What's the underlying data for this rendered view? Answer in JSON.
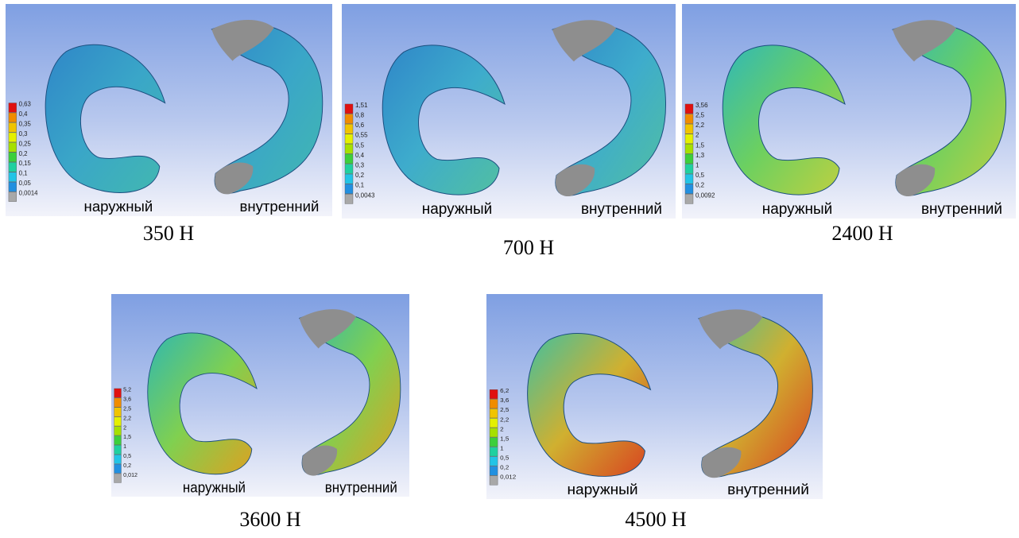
{
  "panels": [
    {
      "legend": [
        "0,63",
        "0,4",
        "0,35",
        "0,3",
        "0,25",
        "0,2",
        "0,15",
        "0,1",
        "0,05",
        "0,0014"
      ],
      "outer_label": "наружный",
      "inner_label": "внутренний",
      "caption": "350 Н"
    },
    {
      "legend": [
        "1,51",
        "0,8",
        "0,6",
        "0,55",
        "0,5",
        "0,4",
        "0,3",
        "0,2",
        "0,1",
        "0,0043"
      ],
      "outer_label": "наружный",
      "inner_label": "внутренний",
      "caption": "700 Н"
    },
    {
      "legend": [
        "3,56",
        "2,5",
        "2,2",
        "2",
        "1,5",
        "1,3",
        "1",
        "0,5",
        "0,2",
        "0,0092"
      ],
      "outer_label": "наружный",
      "inner_label": "внутренний",
      "caption": "2400 Н"
    },
    {
      "legend": [
        "5,2",
        "3,6",
        "2,5",
        "2,2",
        "2",
        "1,5",
        "1",
        "0,5",
        "0,2",
        "0,012"
      ],
      "outer_label": "наружный",
      "inner_label": "внутренний",
      "caption": "3600 Н"
    },
    {
      "legend": [
        "6,2",
        "3,6",
        "2,5",
        "2,2",
        "2",
        "1,5",
        "1",
        "0,5",
        "0,2",
        "0,012"
      ],
      "outer_label": "наружный",
      "inner_label": "внутренний",
      "caption": "4500 Н"
    }
  ]
}
